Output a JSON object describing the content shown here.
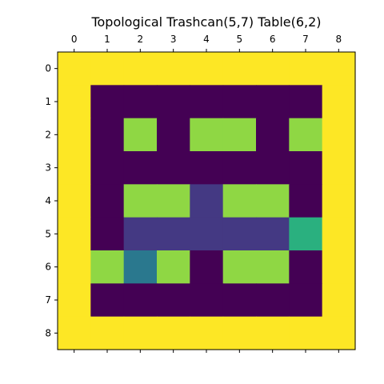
{
  "chart_data": {
    "type": "heatmap",
    "title": "Topological Trashcan(5,7) Table(6,2)",
    "xlabel": "",
    "ylabel": "",
    "x_ticks": [
      "0",
      "1",
      "2",
      "3",
      "4",
      "5",
      "6",
      "7",
      "8"
    ],
    "y_ticks": [
      "0",
      "1",
      "2",
      "3",
      "4",
      "5",
      "6",
      "7",
      "8"
    ],
    "x_tick_position": "top-and-bottom",
    "colormap": "viridis",
    "value_range": [
      0,
      6
    ],
    "grid": false,
    "cells": [
      [
        6,
        6,
        6,
        6,
        6,
        6,
        6,
        6,
        6
      ],
      [
        6,
        0,
        0,
        0,
        0,
        0,
        0,
        0,
        6
      ],
      [
        6,
        0,
        5,
        0,
        5,
        5,
        0,
        5,
        6
      ],
      [
        6,
        0,
        0,
        0,
        0,
        0,
        0,
        0,
        6
      ],
      [
        6,
        0,
        5,
        5,
        1,
        5,
        5,
        0,
        6
      ],
      [
        6,
        0,
        1,
        1,
        1,
        1,
        1,
        4,
        6
      ],
      [
        6,
        5,
        2,
        5,
        0,
        5,
        5,
        0,
        6
      ],
      [
        6,
        0,
        0,
        0,
        0,
        0,
        0,
        0,
        6
      ],
      [
        6,
        6,
        6,
        6,
        6,
        6,
        6,
        6,
        6
      ]
    ],
    "palette": {
      "0": "#440154",
      "1": "#443983",
      "2": "#2a788e",
      "4": "#2ab07f",
      "5": "#8fd744",
      "6": "#fde725"
    }
  }
}
